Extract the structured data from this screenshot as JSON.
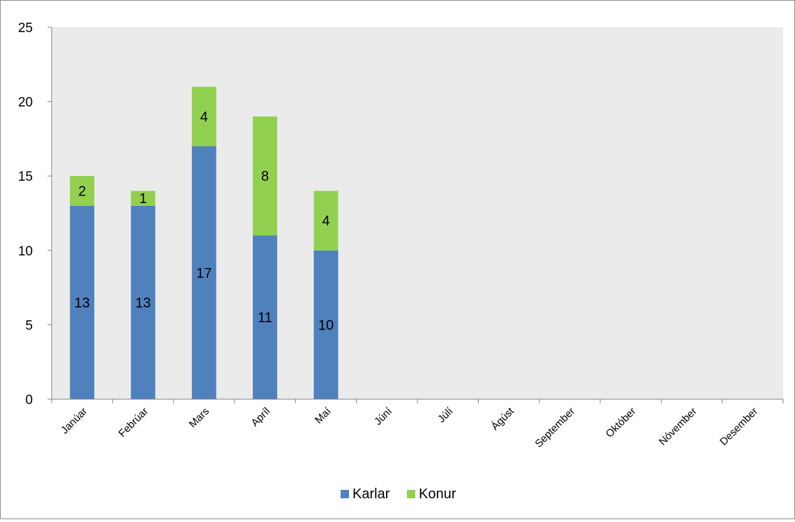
{
  "chart_data": {
    "type": "bar",
    "stacked": true,
    "title": "",
    "xlabel": "",
    "ylabel": "",
    "categories": [
      "Janúar",
      "Febrúar",
      "Mars",
      "Apríl",
      "Maí",
      "Júní",
      "Júlí",
      "Ágúst",
      "September",
      "Október",
      "Nóvember",
      "Desember"
    ],
    "series": [
      {
        "name": "Karlar",
        "color": "#4f81bd",
        "values": [
          13,
          13,
          17,
          11,
          10,
          null,
          null,
          null,
          null,
          null,
          null,
          null
        ]
      },
      {
        "name": "Konur",
        "color": "#92d050",
        "values": [
          2,
          1,
          4,
          8,
          4,
          null,
          null,
          null,
          null,
          null,
          null,
          null
        ]
      }
    ],
    "ylim": [
      0,
      25
    ],
    "yticks": [
      0,
      5,
      10,
      15,
      20,
      25
    ],
    "grid": false,
    "plot_background": "#ebebeb",
    "data_labels": true,
    "legend": {
      "position": "bottom",
      "entries": [
        "Karlar",
        "Konur"
      ]
    }
  }
}
